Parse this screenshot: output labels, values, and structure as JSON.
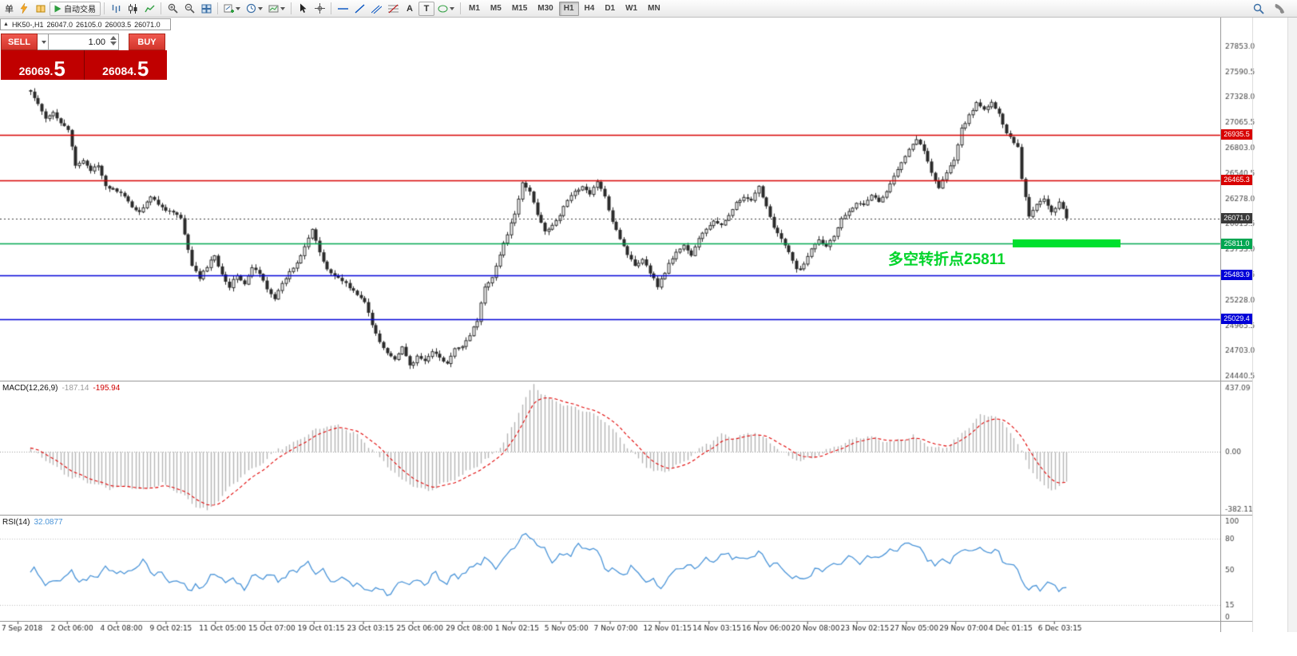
{
  "toolbar": {
    "menu_char": "单",
    "autotrade_label": "自动交易",
    "timeframes": [
      "M1",
      "M5",
      "M15",
      "M30",
      "H1",
      "H4",
      "D1",
      "W1",
      "MN"
    ],
    "active_timeframe": "H1",
    "text_tool_label": "A",
    "label_tool_label": "T"
  },
  "chart_header": {
    "expand_icon": "▲",
    "symbol": "HK50-,H1",
    "open": "26047.0",
    "high": "26105.0",
    "low": "26003.5",
    "close": "26071.0"
  },
  "trade_panel": {
    "sell_label": "SELL",
    "buy_label": "BUY",
    "volume": "1.00",
    "bid_main": "26069",
    "bid_dot": ".",
    "bid_frac": "5",
    "ask_main": "26084",
    "ask_dot": ".",
    "ask_frac": "5"
  },
  "indicators": {
    "macd_label": "MACD(12,26,9)",
    "macd_value": "-187.14",
    "macd_signal": "-195.94",
    "rsi_label": "RSI(14)",
    "rsi_value": "32.0877"
  },
  "annotation_text": "多空转折点25811",
  "colors": {
    "resistance": "#d80000",
    "support": "#0000d8",
    "pivot_line": "#00a651",
    "highlight": "#00e02e",
    "current_price_tag": "#3a3a3a",
    "macd_histogram": "#b5b5b5",
    "macd_signal": "#e00000",
    "rsi_line": "#4a94d8",
    "sell_buy_red": "#c00000"
  },
  "chart_data": [
    {
      "type": "candlestick",
      "title": "HK50-,H1",
      "current_ohlc": {
        "open": 26047.0,
        "high": 26105.0,
        "low": 26003.5,
        "close": 26071.0
      },
      "bar_count": 277,
      "ylim": [
        24400,
        28000
      ],
      "y_tick_values": [
        27853.0,
        27590.5,
        27328.0,
        27065.5,
        26803.0,
        26540.5,
        26278.0,
        26015.5,
        25753.0,
        25490.5,
        25228.0,
        24965.5,
        24703.0,
        24440.5
      ],
      "y_tick_labels": [
        "27853.0",
        "27590.5",
        "27328.0",
        "27065.5",
        "26803.0",
        "26540.5",
        "26278.0",
        "26015.5",
        "25753.0",
        "25490.5",
        "25228.0",
        "24965.5",
        "24703.0",
        "24440.5"
      ],
      "x_tick_labels": [
        "7 Sep 2018",
        "2 Oct 06:00",
        "4 Oct 08:00",
        "9 Oct 02:15",
        "11 Oct 05:00",
        "15 Oct 07:00",
        "19 Oct 01:15",
        "23 Oct 03:15",
        "25 Oct 06:00",
        "29 Oct 08:00",
        "1 Nov 02:15",
        "5 Nov 05:00",
        "7 Nov 07:00",
        "12 Nov 01:15",
        "14 Nov 03:15",
        "16 Nov 06:00",
        "20 Nov 08:00",
        "23 Nov 02:15",
        "27 Nov 05:00",
        "29 Nov 07:00",
        "4 Dec 01:15",
        "6 Dec 03:15"
      ],
      "close_anchors": [
        [
          0,
          27380
        ],
        [
          2,
          27230
        ],
        [
          4,
          27100
        ],
        [
          6,
          27180
        ],
        [
          8,
          27060
        ],
        [
          10,
          26980
        ],
        [
          12,
          26620
        ],
        [
          14,
          26680
        ],
        [
          16,
          26560
        ],
        [
          18,
          26600
        ],
        [
          20,
          26420
        ],
        [
          23,
          26350
        ],
        [
          26,
          26240
        ],
        [
          29,
          26140
        ],
        [
          32,
          26280
        ],
        [
          35,
          26200
        ],
        [
          38,
          26120
        ],
        [
          40,
          26060
        ],
        [
          41,
          25900
        ],
        [
          43,
          25600
        ],
        [
          45,
          25440
        ],
        [
          47,
          25560
        ],
        [
          49,
          25700
        ],
        [
          51,
          25500
        ],
        [
          53,
          25350
        ],
        [
          55,
          25480
        ],
        [
          57,
          25400
        ],
        [
          59,
          25560
        ],
        [
          61,
          25480
        ],
        [
          63,
          25350
        ],
        [
          65,
          25260
        ],
        [
          67,
          25380
        ],
        [
          69,
          25500
        ],
        [
          71,
          25620
        ],
        [
          73,
          25800
        ],
        [
          75,
          25950
        ],
        [
          77,
          25700
        ],
        [
          79,
          25560
        ],
        [
          81,
          25480
        ],
        [
          83,
          25420
        ],
        [
          85,
          25350
        ],
        [
          87,
          25300
        ],
        [
          89,
          25200
        ],
        [
          91,
          24950
        ],
        [
          93,
          24800
        ],
        [
          95,
          24700
        ],
        [
          97,
          24600
        ],
        [
          99,
          24720
        ],
        [
          101,
          24560
        ],
        [
          103,
          24640
        ],
        [
          105,
          24580
        ],
        [
          107,
          24700
        ],
        [
          109,
          24640
        ],
        [
          111,
          24560
        ],
        [
          113,
          24700
        ],
        [
          115,
          24760
        ],
        [
          117,
          24880
        ],
        [
          119,
          25000
        ],
        [
          121,
          25350
        ],
        [
          123,
          25480
        ],
        [
          125,
          25700
        ],
        [
          127,
          25900
        ],
        [
          129,
          26100
        ],
        [
          131,
          26450
        ],
        [
          133,
          26350
        ],
        [
          135,
          26100
        ],
        [
          137,
          25950
        ],
        [
          139,
          26000
        ],
        [
          141,
          26100
        ],
        [
          143,
          26250
        ],
        [
          145,
          26350
        ],
        [
          147,
          26420
        ],
        [
          149,
          26300
        ],
        [
          151,
          26450
        ],
        [
          153,
          26300
        ],
        [
          155,
          26050
        ],
        [
          157,
          25850
        ],
        [
          159,
          25700
        ],
        [
          161,
          25600
        ],
        [
          163,
          25650
        ],
        [
          165,
          25500
        ],
        [
          167,
          25380
        ],
        [
          168,
          25450
        ],
        [
          170,
          25600
        ],
        [
          172,
          25700
        ],
        [
          174,
          25800
        ],
        [
          176,
          25700
        ],
        [
          178,
          25850
        ],
        [
          180,
          25950
        ],
        [
          182,
          26050
        ],
        [
          184,
          26000
        ],
        [
          186,
          26100
        ],
        [
          188,
          26220
        ],
        [
          190,
          26300
        ],
        [
          192,
          26250
        ],
        [
          194,
          26380
        ],
        [
          196,
          26200
        ],
        [
          198,
          26000
        ],
        [
          200,
          25850
        ],
        [
          202,
          25700
        ],
        [
          204,
          25550
        ],
        [
          206,
          25600
        ],
        [
          208,
          25750
        ],
        [
          210,
          25850
        ],
        [
          212,
          25800
        ],
        [
          214,
          25900
        ],
        [
          216,
          26050
        ],
        [
          218,
          26150
        ],
        [
          220,
          26250
        ],
        [
          222,
          26200
        ],
        [
          224,
          26300
        ],
        [
          226,
          26250
        ],
        [
          228,
          26350
        ],
        [
          230,
          26500
        ],
        [
          232,
          26650
        ],
        [
          234,
          26800
        ],
        [
          236,
          26900
        ],
        [
          238,
          26750
        ],
        [
          240,
          26550
        ],
        [
          242,
          26400
        ],
        [
          244,
          26550
        ],
        [
          246,
          26650
        ],
        [
          248,
          27000
        ],
        [
          250,
          27150
        ],
        [
          252,
          27250
        ],
        [
          254,
          27180
        ],
        [
          256,
          27280
        ],
        [
          258,
          27150
        ],
        [
          260,
          26950
        ],
        [
          262,
          26850
        ],
        [
          263,
          26820
        ],
        [
          264,
          26500
        ],
        [
          265,
          26300
        ],
        [
          266,
          26100
        ],
        [
          268,
          26200
        ],
        [
          270,
          26280
        ],
        [
          272,
          26150
        ],
        [
          274,
          26230
        ],
        [
          276,
          26071
        ]
      ],
      "horizontal_lines": [
        {
          "price": 26935.5,
          "label": "26935.5",
          "color": "#d80000",
          "type": "resistance"
        },
        {
          "price": 26465.3,
          "label": "26465.3",
          "color": "#d80000",
          "type": "resistance"
        },
        {
          "price": 26071.0,
          "label": "26071.0",
          "color": "#3a3a3a",
          "type": "current-price"
        },
        {
          "price": 25811.0,
          "label": "25811.0",
          "color": "#00a651",
          "type": "pivot"
        },
        {
          "price": 25483.9,
          "label": "25483.9",
          "color": "#0000d8",
          "type": "support"
        },
        {
          "price": 25029.4,
          "label": "25029.4",
          "color": "#0000d8",
          "type": "support"
        }
      ],
      "highlight_bar": {
        "price": 25811.0,
        "color": "#00e02e"
      },
      "annotation": {
        "text": "多空转折点25811",
        "price": 25811,
        "color": "#00d42a"
      }
    },
    {
      "type": "bar",
      "title": "MACD(12,26,9)",
      "current_macd": -187.14,
      "current_signal": -195.94,
      "ylim": [
        -382.11,
        437.09
      ],
      "y_tick_values": [
        437.09,
        0,
        -382.11
      ],
      "y_tick_labels": [
        "437.09",
        "0.00",
        "-382.11"
      ],
      "anchors": [
        [
          0,
          20
        ],
        [
          3,
          -30
        ],
        [
          6,
          -90
        ],
        [
          9,
          -140
        ],
        [
          12,
          -170
        ],
        [
          16,
          -200
        ],
        [
          20,
          -230
        ],
        [
          25,
          -220
        ],
        [
          30,
          -240
        ],
        [
          35,
          -200
        ],
        [
          40,
          -260
        ],
        [
          44,
          -340
        ],
        [
          47,
          -370
        ],
        [
          50,
          -300
        ],
        [
          54,
          -200
        ],
        [
          58,
          -120
        ],
        [
          62,
          -60
        ],
        [
          66,
          20
        ],
        [
          70,
          60
        ],
        [
          74,
          120
        ],
        [
          78,
          160
        ],
        [
          82,
          170
        ],
        [
          86,
          120
        ],
        [
          90,
          40
        ],
        [
          94,
          -60
        ],
        [
          98,
          -160
        ],
        [
          102,
          -220
        ],
        [
          106,
          -240
        ],
        [
          110,
          -200
        ],
        [
          114,
          -160
        ],
        [
          118,
          -100
        ],
        [
          122,
          -40
        ],
        [
          126,
          60
        ],
        [
          129,
          200
        ],
        [
          132,
          350
        ],
        [
          134,
          430
        ],
        [
          136,
          380
        ],
        [
          139,
          330
        ],
        [
          142,
          300
        ],
        [
          145,
          280
        ],
        [
          148,
          260
        ],
        [
          151,
          230
        ],
        [
          154,
          170
        ],
        [
          157,
          90
        ],
        [
          160,
          10
        ],
        [
          163,
          -70
        ],
        [
          166,
          -120
        ],
        [
          169,
          -130
        ],
        [
          172,
          -90
        ],
        [
          175,
          -40
        ],
        [
          178,
          20
        ],
        [
          181,
          60
        ],
        [
          184,
          110
        ],
        [
          187,
          90
        ],
        [
          190,
          110
        ],
        [
          193,
          130
        ],
        [
          196,
          80
        ],
        [
          199,
          20
        ],
        [
          202,
          -30
        ],
        [
          205,
          -60
        ],
        [
          208,
          -40
        ],
        [
          211,
          0
        ],
        [
          214,
          30
        ],
        [
          217,
          60
        ],
        [
          220,
          90
        ],
        [
          223,
          100
        ],
        [
          226,
          80
        ],
        [
          229,
          60
        ],
        [
          232,
          80
        ],
        [
          235,
          100
        ],
        [
          238,
          60
        ],
        [
          241,
          20
        ],
        [
          244,
          40
        ],
        [
          247,
          90
        ],
        [
          250,
          160
        ],
        [
          253,
          230
        ],
        [
          256,
          240
        ],
        [
          259,
          180
        ],
        [
          262,
          100
        ],
        [
          264,
          0
        ],
        [
          266,
          -100
        ],
        [
          268,
          -160
        ],
        [
          270,
          -220
        ],
        [
          272,
          -240
        ],
        [
          274,
          -210
        ],
        [
          276,
          -187.14
        ]
      ]
    },
    {
      "type": "line",
      "title": "RSI(14)",
      "current_value": 32.0877,
      "ylim": [
        0,
        100
      ],
      "levels": [
        80,
        15
      ],
      "y_tick_values": [
        100,
        80,
        50,
        15,
        0
      ],
      "y_tick_labels": [
        "100",
        "80",
        "50",
        "15",
        "0"
      ],
      "anchors": [
        [
          0,
          50
        ],
        [
          5,
          35
        ],
        [
          10,
          45
        ],
        [
          15,
          40
        ],
        [
          20,
          50
        ],
        [
          25,
          45
        ],
        [
          30,
          55
        ],
        [
          35,
          45
        ],
        [
          41,
          35
        ],
        [
          45,
          30
        ],
        [
          48,
          45
        ],
        [
          52,
          38
        ],
        [
          57,
          35
        ],
        [
          62,
          45
        ],
        [
          68,
          40
        ],
        [
          73,
          55
        ],
        [
          76,
          50
        ],
        [
          80,
          42
        ],
        [
          85,
          38
        ],
        [
          90,
          30
        ],
        [
          95,
          28
        ],
        [
          100,
          40
        ],
        [
          105,
          35
        ],
        [
          108,
          45
        ],
        [
          111,
          38
        ],
        [
          116,
          48
        ],
        [
          120,
          60
        ],
        [
          124,
          55
        ],
        [
          127,
          65
        ],
        [
          131,
          80
        ],
        [
          134,
          85
        ],
        [
          136,
          70
        ],
        [
          139,
          60
        ],
        [
          142,
          65
        ],
        [
          146,
          72
        ],
        [
          150,
          68
        ],
        [
          153,
          55
        ],
        [
          157,
          45
        ],
        [
          160,
          50
        ],
        [
          164,
          40
        ],
        [
          168,
          35
        ],
        [
          172,
          50
        ],
        [
          177,
          55
        ],
        [
          182,
          60
        ],
        [
          186,
          65
        ],
        [
          190,
          60
        ],
        [
          194,
          68
        ],
        [
          198,
          55
        ],
        [
          202,
          45
        ],
        [
          206,
          40
        ],
        [
          210,
          50
        ],
        [
          214,
          55
        ],
        [
          218,
          62
        ],
        [
          222,
          58
        ],
        [
          226,
          62
        ],
        [
          231,
          70
        ],
        [
          236,
          75
        ],
        [
          239,
          60
        ],
        [
          243,
          55
        ],
        [
          246,
          65
        ],
        [
          250,
          72
        ],
        [
          254,
          68
        ],
        [
          258,
          65
        ],
        [
          261,
          55
        ],
        [
          264,
          45
        ],
        [
          266,
          30
        ],
        [
          270,
          35
        ],
        [
          273,
          32
        ],
        [
          276,
          32.0877
        ]
      ]
    }
  ]
}
